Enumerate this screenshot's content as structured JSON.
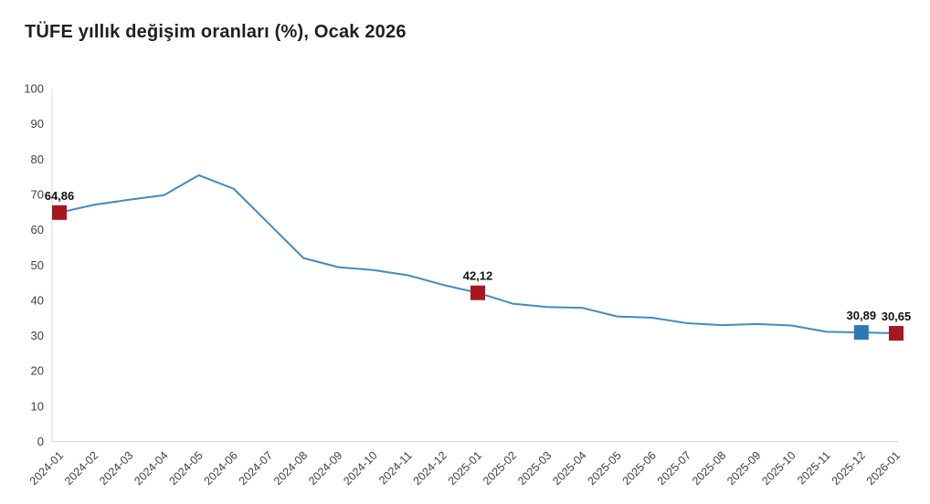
{
  "title": "TÜFE yıllık değişim oranları (%), Ocak 2026",
  "colors": {
    "background": "#ffffff",
    "title_text": "#1f1f1f",
    "axis_line": "#d9d9d9",
    "tick_label": "#404040",
    "series_line": "#4289c7",
    "marker_red": "#a8161f",
    "marker_blue": "#2e79b5",
    "data_label": "#111111"
  },
  "chart_data": {
    "type": "line",
    "title": "TÜFE yıllık değişim oranları (%), Ocak 2026",
    "xlabel": "",
    "ylabel": "",
    "ylim": [
      0,
      100
    ],
    "yticks": [
      0,
      10,
      20,
      30,
      40,
      50,
      60,
      70,
      80,
      90,
      100
    ],
    "grid": false,
    "legend_position": "none",
    "x": [
      "2024-01",
      "2024-02",
      "2024-03",
      "2024-04",
      "2024-05",
      "2024-06",
      "2024-07",
      "2024-08",
      "2024-09",
      "2024-10",
      "2024-11",
      "2024-12",
      "2025-01",
      "2025-02",
      "2025-03",
      "2025-04",
      "2025-05",
      "2025-06",
      "2025-07",
      "2025-08",
      "2025-09",
      "2025-10",
      "2025-11",
      "2025-12",
      "2026-01"
    ],
    "series": [
      {
        "name": "TÜFE yıllık değişim oranı (%)",
        "values": [
          64.86,
          67.07,
          68.5,
          69.8,
          75.45,
          71.6,
          61.78,
          51.97,
          49.38,
          48.58,
          47.09,
          44.38,
          42.12,
          39.05,
          38.1,
          37.86,
          35.41,
          35.05,
          33.52,
          32.95,
          33.29,
          32.87,
          31.07,
          30.89,
          30.65
        ]
      }
    ],
    "highlighted_points": [
      {
        "x": "2024-01",
        "value": 64.86,
        "label": "64,86",
        "marker": "red"
      },
      {
        "x": "2025-01",
        "value": 42.12,
        "label": "42,12",
        "marker": "red"
      },
      {
        "x": "2025-12",
        "value": 30.89,
        "label": "30,89",
        "marker": "blue"
      },
      {
        "x": "2026-01",
        "value": 30.65,
        "label": "30,65",
        "marker": "red"
      }
    ]
  }
}
